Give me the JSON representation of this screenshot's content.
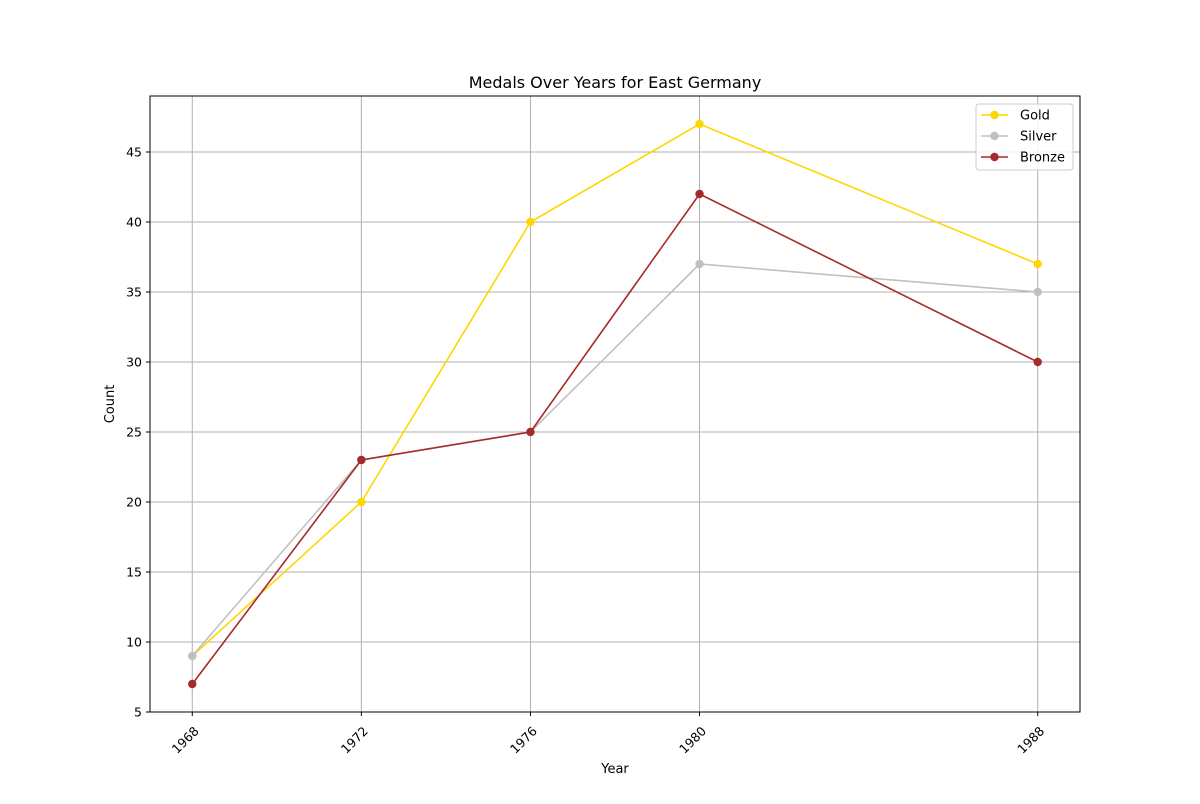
{
  "chart_data": {
    "type": "line",
    "title": "Medals Over Years for East Germany",
    "xlabel": "Year",
    "ylabel": "Count",
    "x": [
      1968,
      1972,
      1976,
      1980,
      1988
    ],
    "x_tick_labels": [
      "1968",
      "1972",
      "1976",
      "1980",
      "1988"
    ],
    "x_range": [
      1967.0,
      1989.0
    ],
    "ylim": [
      5.0,
      49.0
    ],
    "y_ticks": [
      5,
      10,
      15,
      20,
      25,
      30,
      35,
      40,
      45
    ],
    "grid": true,
    "legend_position": "top-right",
    "series": [
      {
        "name": "Gold",
        "color": "#FFD700",
        "values": [
          9,
          20,
          40,
          47,
          37
        ]
      },
      {
        "name": "Silver",
        "color": "#C0C0C0",
        "values": [
          9,
          23,
          25,
          37,
          35
        ]
      },
      {
        "name": "Bronze",
        "color": "#A52A2A",
        "values": [
          7,
          23,
          25,
          42,
          30
        ]
      }
    ]
  }
}
